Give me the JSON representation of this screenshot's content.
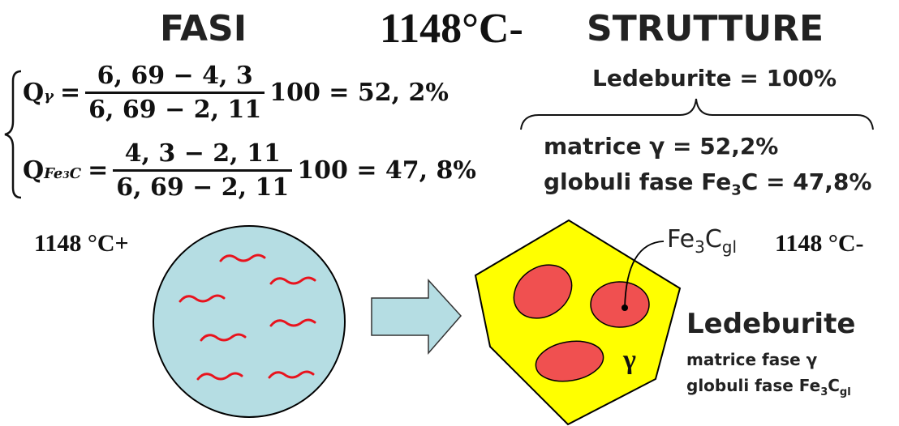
{
  "header": {
    "fasi": "FASI",
    "temp": "1148°C-",
    "strutture": "STRUTTURE"
  },
  "formulas": {
    "q_gamma": {
      "q": "Q",
      "sub": "γ",
      "eq": "=",
      "num": "6, 69 − 4, 3",
      "den": "6, 69 − 2, 11",
      "result": "100 = 52, 2%"
    },
    "q_fe3c": {
      "q": "Q",
      "sub_a": "Fe",
      "sub_b": "3",
      "sub_c": "C",
      "eq": "=",
      "num": "4, 3 − 2, 11",
      "den": "6, 69 − 2, 11",
      "result": "100 = 47, 8%"
    }
  },
  "strutture": {
    "ledeburite_total": "Ledeburite = 100%",
    "matrice_line": "matrice γ = 52,2%",
    "globuli_a": "globuli fase Fe",
    "globuli_sub": "3",
    "globuli_b": "C = 47,8%"
  },
  "diagram": {
    "left_temp": "1148 °C+",
    "right_temp": "1148 °C-",
    "fe3c_label_a": "Fe",
    "fe3c_label_sub1": "3",
    "fe3c_label_b": "C",
    "fe3c_label_sub2": "gl",
    "gamma_label": "γ",
    "ledeburite_title": "Ledeburite",
    "matrice_fase": "matrice fase γ",
    "globuli_fase_a": "globuli fase Fe",
    "globuli_fase_sub1": "3",
    "globuli_fase_b": "C",
    "globuli_fase_sub2": "gl"
  },
  "colors": {
    "liquid_fill": "#b5dde3",
    "squiggle": "#e8131d",
    "crystal_fill": "#ffff00",
    "globule_fill": "#f05050",
    "arrow_fill": "#b5dde3"
  }
}
